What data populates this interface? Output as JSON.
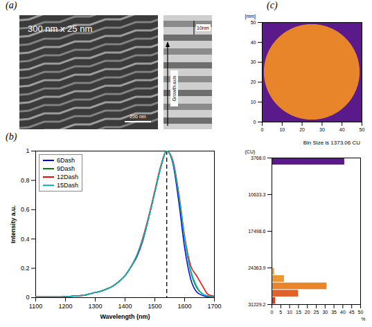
{
  "panels": [
    {
      "label": "(a)",
      "image_text": "300 nm x 25 nm",
      "scale_bar": "200 nm",
      "inset_scale": "10nm",
      "inset_axis": "Growth axis"
    },
    {
      "label": "(b)"
    },
    {
      "label": "(c)"
    }
  ],
  "chart_data": [
    {
      "panel": "(b)",
      "type": "line",
      "x_label": "Wavelength (nm)",
      "y_label": "Intensity a.u.",
      "x": [
        1100,
        1120,
        1140,
        1160,
        1180,
        1200,
        1220,
        1240,
        1260,
        1280,
        1300,
        1320,
        1340,
        1360,
        1380,
        1400,
        1420,
        1440,
        1460,
        1480,
        1500,
        1520,
        1540,
        1560,
        1580,
        1600,
        1620,
        1640,
        1660,
        1680,
        1700
      ],
      "series": [
        {
          "name": "6Dash",
          "color": "#0000ff",
          "values": [
            0.005,
            0.005,
            0.005,
            0.005,
            0.005,
            0.007,
            0.01,
            0.012,
            0.015,
            0.025,
            0.035,
            0.045,
            0.06,
            0.08,
            0.11,
            0.15,
            0.21,
            0.28,
            0.39,
            0.55,
            0.72,
            0.89,
            1.0,
            0.92,
            0.66,
            0.34,
            0.13,
            0.04,
            0.015,
            0.005,
            0.003
          ]
        },
        {
          "name": "9Dash",
          "color": "#008000",
          "values": [
            0.005,
            0.005,
            0.005,
            0.005,
            0.005,
            0.007,
            0.01,
            0.012,
            0.015,
            0.025,
            0.035,
            0.045,
            0.06,
            0.08,
            0.11,
            0.15,
            0.21,
            0.29,
            0.4,
            0.55,
            0.72,
            0.89,
            1.0,
            0.93,
            0.7,
            0.4,
            0.18,
            0.07,
            0.025,
            0.01,
            0.005
          ]
        },
        {
          "name": "12Dash",
          "color": "#ff0000",
          "values": [
            0.005,
            0.005,
            0.005,
            0.005,
            0.005,
            0.007,
            0.01,
            0.012,
            0.015,
            0.025,
            0.035,
            0.045,
            0.06,
            0.08,
            0.11,
            0.15,
            0.21,
            0.29,
            0.41,
            0.56,
            0.73,
            0.9,
            1.0,
            0.94,
            0.72,
            0.42,
            0.22,
            0.15,
            0.08,
            0.02,
            0.01
          ]
        },
        {
          "name": "15Dash",
          "color": "#00bfbf",
          "values": [
            0.005,
            0.005,
            0.005,
            0.005,
            0.005,
            0.007,
            0.01,
            0.012,
            0.015,
            0.025,
            0.035,
            0.045,
            0.06,
            0.08,
            0.11,
            0.15,
            0.21,
            0.29,
            0.4,
            0.55,
            0.72,
            0.89,
            1.0,
            0.93,
            0.71,
            0.41,
            0.19,
            0.08,
            0.025,
            0.01,
            0.005
          ]
        }
      ],
      "xlim": [
        1100,
        1700
      ],
      "xticks": [
        1100,
        1200,
        1300,
        1400,
        1500,
        1600,
        1700
      ],
      "ylim": [
        0,
        1
      ],
      "yticks": [
        0,
        0.2,
        0.4,
        0.6,
        0.8,
        1
      ],
      "legend": "upper left",
      "reference_line": {
        "x": 1540,
        "line_style": "dashed",
        "color": "#000000"
      }
    },
    {
      "panel": "(c)",
      "type": "map",
      "y_label": "[mm]",
      "xlim": [
        0,
        50
      ],
      "xticks": [
        0,
        10,
        20,
        30,
        40,
        50
      ],
      "ylim": [
        0,
        50
      ],
      "yticks": [
        0,
        10,
        20,
        30,
        40,
        50
      ],
      "disk": {
        "center": [
          25,
          25
        ],
        "radius": 24
      },
      "colors": [
        "#5a1a8a",
        "#e8852b"
      ]
    },
    {
      "panel": "(c)",
      "type": "histogram",
      "orientation": "horizontal",
      "title": "Bin Size is 1373.06 CU",
      "y_label": "(CU)",
      "x_label": "%",
      "bins": [
        3768,
        5141.06,
        6514.12,
        7887.18,
        9260.24,
        10633.3,
        12006.36,
        13379.42,
        14752.48,
        16125.54,
        17498.6,
        18871.66,
        20244.72,
        21617.78,
        22990.84,
        24363.9,
        25736.96,
        27110.02,
        28483.08,
        29856.14,
        31229.2
      ],
      "values": [
        41,
        0.2,
        0.2,
        0.2,
        0.2,
        0.2,
        0.2,
        0.2,
        0.2,
        0.2,
        0.2,
        0.2,
        0.2,
        0.2,
        0.5,
        1.5,
        7,
        31,
        15,
        2
      ],
      "colors": [
        "#5a1a8a",
        "#4a2aa5",
        "#3848c0",
        "#2d68d4",
        "#2788d6",
        "#22a2cc",
        "#1fb5b0",
        "#26bf8c",
        "#3fc566",
        "#66c848",
        "#92c933",
        "#bccb2b",
        "#dccc29",
        "#eec828",
        "#f4bd2a",
        "#f2a92c",
        "#ee952d",
        "#e8852b",
        "#e0622a",
        "#d63c24"
      ],
      "xlim": [
        0,
        50
      ],
      "xticks": [
        0,
        5,
        10,
        15,
        20,
        25,
        30,
        35,
        40,
        45,
        50
      ],
      "ylim": [
        31229.2,
        3768
      ],
      "yticks": [
        {
          "value": 3768,
          "label": "3768.0"
        },
        10633.3,
        17498.6,
        24363.9,
        31229.2
      ]
    }
  ]
}
